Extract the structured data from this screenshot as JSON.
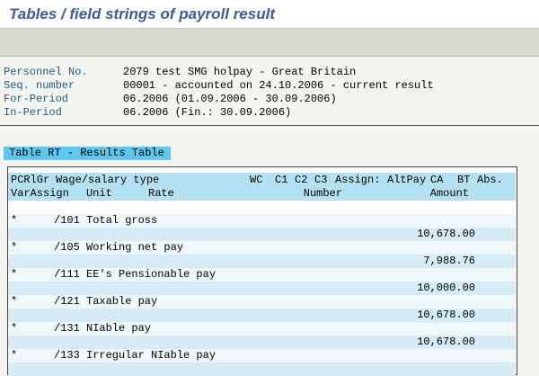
{
  "header": {
    "title": "Tables / field strings of payroll result"
  },
  "info": [
    {
      "label": "Personnel No.",
      "value": "2079 test SMG holpay - Great Britain"
    },
    {
      "label": "Seq. number",
      "value": "00001 - accounted on 24.10.2006 - current result"
    },
    {
      "label": "For-Period",
      "value": "06.2006 (01.09.2006 - 30.09.2006)"
    },
    {
      "label": "In-Period",
      "value": "06.2006 (Fin.: 30.09.2006)"
    }
  ],
  "table": {
    "title": "Table RT - Results Table",
    "header_line_1": [
      "PCRlGr",
      "Wage/salary type",
      "WC",
      "C1",
      "C2",
      "C3",
      "Assign:",
      "AltPay",
      "CA",
      "BT",
      "Abs."
    ],
    "header_line_2": [
      "VarAssign",
      "Unit",
      "Rate",
      "Number",
      "Amount"
    ],
    "rows": [
      {
        "var": "*",
        "wage_type": "/101",
        "text": "Total gross",
        "amount": "10,678.00"
      },
      {
        "var": "*",
        "wage_type": "/105",
        "text": "Working net pay",
        "amount": "7,988.76"
      },
      {
        "var": "*",
        "wage_type": "/111",
        "text": "EE's Pensionable pay",
        "amount": "10,000.00"
      },
      {
        "var": "*",
        "wage_type": "/121",
        "text": "Taxable pay",
        "amount": "10,678.00"
      },
      {
        "var": "*",
        "wage_type": "/131",
        "text": "NIable pay",
        "amount": "10,678.00"
      },
      {
        "var": "*",
        "wage_type": "/133",
        "text": "Irregular NIable pay"
      }
    ]
  }
}
